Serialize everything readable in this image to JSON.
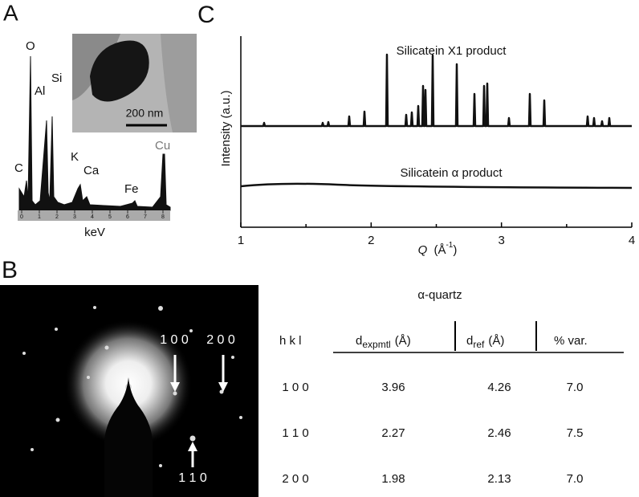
{
  "panel_a": {
    "label": "A",
    "elements": [
      "C",
      "O",
      "Al",
      "Si",
      "K",
      "Ca",
      "Fe",
      "Cu"
    ],
    "xticks": [
      0,
      1,
      2,
      3,
      4,
      5,
      6,
      7,
      8
    ],
    "xlabel": "keV",
    "scale_bar": "200 nm"
  },
  "panel_b": {
    "label": "B",
    "spot_labels": [
      "1 0 0",
      "2 0 0",
      "1 1 0"
    ],
    "table": {
      "title": "α-quartz",
      "headers": [
        {
          "text": "h k l"
        },
        {
          "symbol": "d",
          "subscript": "expmtl",
          "unit": "(Å)"
        },
        {
          "symbol": "d",
          "subscript": "ref",
          "unit": "(Å)"
        },
        {
          "text": "% var."
        }
      ],
      "rows": [
        [
          "1 0 0",
          "3.96",
          "4.26",
          "7.0"
        ],
        [
          "1 1 0",
          "2.27",
          "2.46",
          "7.5"
        ],
        [
          "2 0 0",
          "1.98",
          "2.13",
          "7.0"
        ]
      ]
    }
  },
  "panel_c": {
    "label": "C",
    "xlim": [
      1,
      4
    ],
    "xticks": [
      1,
      2,
      3,
      4
    ],
    "xlabel": {
      "symbol": "Q",
      "unit_open": "(Å",
      "superscript": "-1",
      "unit_close": ")"
    },
    "ylabel": "Intensity (a.u.)",
    "series_labels": [
      "Silicatein X1 product",
      "Silicatein α product"
    ]
  }
}
